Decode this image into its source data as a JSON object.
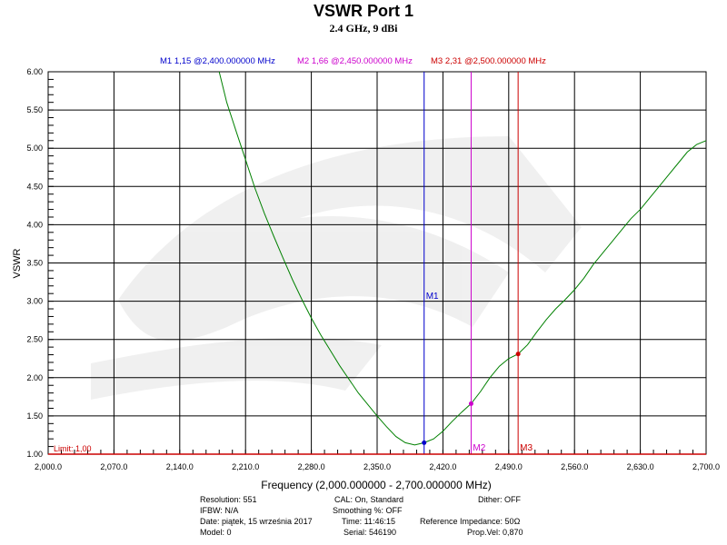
{
  "chart_data": {
    "type": "line",
    "title": "VSWR Port 1",
    "subtitle": "2.4 GHz, 9 dBi",
    "xlabel": "Frequency (2,000.000000 - 2,700.000000 MHz)",
    "ylabel": "VSWR",
    "xlim": [
      2000,
      2700
    ],
    "ylim": [
      1.0,
      6.0
    ],
    "x_ticks": [
      "2,000.0",
      "2,070.0",
      "2,140.0",
      "2,210.0",
      "2,280.0",
      "2,350.0",
      "2,420.0",
      "2,490.0",
      "2,560.0",
      "2,630.0",
      "2,700.0"
    ],
    "y_ticks": [
      "1.00",
      "1.50",
      "2.00",
      "2.50",
      "3.00",
      "3.50",
      "4.00",
      "4.50",
      "5.00",
      "5.50",
      "6.00"
    ],
    "grid": true,
    "series": [
      {
        "x": [
          2182,
          2190,
          2200,
          2210,
          2220,
          2230,
          2240,
          2250,
          2260,
          2270,
          2280,
          2290,
          2300,
          2310,
          2320,
          2330,
          2340,
          2350,
          2360,
          2370,
          2380,
          2390,
          2400,
          2410,
          2420,
          2430,
          2440,
          2450,
          2460,
          2470,
          2480,
          2490,
          2500,
          2510,
          2520,
          2530,
          2540,
          2550,
          2560,
          2570,
          2580,
          2590,
          2600,
          2610,
          2620,
          2630,
          2640,
          2650,
          2660,
          2670,
          2680,
          2690,
          2700
        ],
        "y": [
          6.0,
          5.6,
          5.22,
          4.85,
          4.48,
          4.15,
          3.85,
          3.56,
          3.28,
          3.02,
          2.78,
          2.56,
          2.36,
          2.16,
          1.98,
          1.8,
          1.65,
          1.5,
          1.36,
          1.23,
          1.15,
          1.12,
          1.15,
          1.2,
          1.3,
          1.43,
          1.55,
          1.66,
          1.82,
          2.0,
          2.15,
          2.25,
          2.31,
          2.43,
          2.6,
          2.76,
          2.9,
          3.02,
          3.15,
          3.3,
          3.48,
          3.63,
          3.78,
          3.93,
          4.08,
          4.2,
          4.35,
          4.5,
          4.65,
          4.8,
          4.95,
          5.05,
          5.1
        ],
        "color": "#008000"
      }
    ],
    "markers": [
      {
        "id": "M1",
        "legend": "M1  1,15 @2,400.000000 MHz",
        "freq": 2400,
        "vswr": 1.15,
        "color": "#0000cc"
      },
      {
        "id": "M2",
        "legend": "M2  1,66 @2,450.000000 MHz",
        "freq": 2450,
        "vswr": 1.66,
        "color": "#cc00cc"
      },
      {
        "id": "M3",
        "legend": "M3  2,31 @2,500.000000 MHz",
        "freq": 2500,
        "vswr": 2.31,
        "color": "#cc0000"
      }
    ],
    "limit": {
      "label": "Limit: 1,00",
      "value": 1.0,
      "color": "#cc0000"
    }
  },
  "info": {
    "resolution": "Resolution: 551",
    "ifbw": "IFBW: N/A",
    "date": "Date: piątek, 15 września 2017",
    "model": "Model: 0",
    "cal": "CAL: On, Standard",
    "smoothing": "Smoothing %:  OFF",
    "time": "Time: 11:46:15",
    "serial": "Serial: 546190",
    "dither": "Dither:  OFF",
    "ref_impedance": "Reference Impedance: 50Ω",
    "prop_vel": "Prop.Vel: 0,870"
  }
}
